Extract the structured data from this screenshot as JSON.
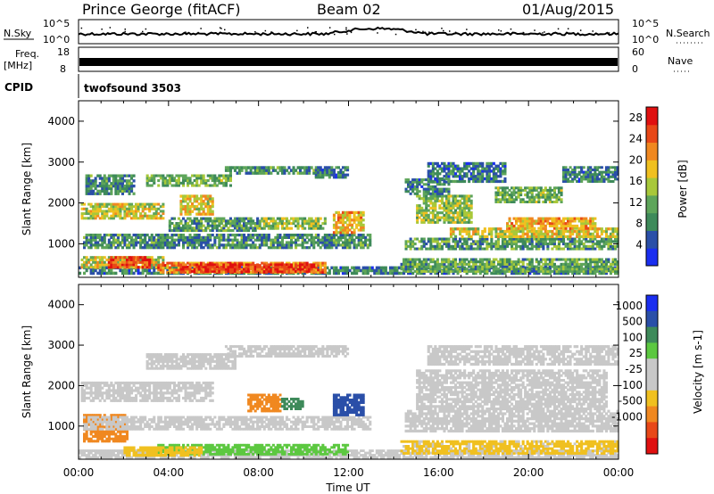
{
  "header": {
    "station": "Prince George (fitACF)",
    "beam": "Beam 02",
    "date": "01/Aug/2015"
  },
  "top_panels": {
    "nsky_label": "N.Sky",
    "nsky_ticks": [
      "10^5",
      "10^0"
    ],
    "nsearch_label": "N.Search",
    "nsearch_ticks": [
      "10^5",
      "10^0"
    ],
    "freq_label": "Freq.",
    "freq_unit": "[MHz]",
    "freq_ticks": [
      "18",
      "8"
    ],
    "nave_label": "Nave",
    "nave_ticks": [
      "60",
      "0"
    ],
    "cpid_label": "CPID",
    "cpid_value": "twofsound 3503"
  },
  "colors": {
    "power_scale": [
      "#1a2ef0",
      "#2a4fa8",
      "#3e8a5a",
      "#5ea55a",
      "#a8c83a",
      "#f0c020",
      "#f08820",
      "#e84818",
      "#e01010"
    ],
    "velocity_scale": [
      "#e01010",
      "#e84818",
      "#f08820",
      "#f0c020",
      "#c8c8c8",
      "#c8c8c8",
      "#5cc840",
      "#3e8a5a",
      "#2a4fa8",
      "#1a2ef0"
    ],
    "ground_scatter": "#c0c0c0"
  },
  "chart_data": [
    {
      "type": "heatmap",
      "name": "power-panel",
      "ylabel": "Slant Range [km]",
      "xlabel": "Time UT",
      "ylim": [
        180,
        4500
      ],
      "yticks": [
        "4000",
        "3000",
        "2000",
        "1000"
      ],
      "xticks": [
        "00:00",
        "04:00",
        "08:00",
        "12:00",
        "16:00",
        "20:00",
        "00:00"
      ],
      "colorbar_label": "Power [dB]",
      "colorbar_ticks": [
        "28",
        "24",
        "20",
        "16",
        "12",
        "8",
        "4"
      ],
      "colorbar_range": [
        0,
        30
      ],
      "x_units": "hours UT",
      "blobs": [
        {
          "t0": 0.0,
          "t1": 24.0,
          "r0": 250,
          "r1": 450,
          "v": 8
        },
        {
          "t0": 0.1,
          "t1": 3.8,
          "r0": 400,
          "r1": 700,
          "v": 16
        },
        {
          "t0": 1.3,
          "t1": 3.2,
          "r0": 400,
          "r1": 700,
          "v": 25
        },
        {
          "t0": 3.5,
          "t1": 11.0,
          "r0": 280,
          "r1": 560,
          "v": 22
        },
        {
          "t0": 4.5,
          "t1": 10.5,
          "r0": 300,
          "r1": 520,
          "v": 27
        },
        {
          "t0": 0.2,
          "t1": 13.0,
          "r0": 880,
          "r1": 1250,
          "v": 9
        },
        {
          "t0": 4.0,
          "t1": 8.0,
          "r0": 1300,
          "r1": 1650,
          "v": 10
        },
        {
          "t0": 8.0,
          "t1": 11.0,
          "r0": 1350,
          "r1": 1650,
          "v": 14
        },
        {
          "t0": 11.3,
          "t1": 12.7,
          "r0": 1250,
          "r1": 1800,
          "v": 19
        },
        {
          "t0": 0.1,
          "t1": 3.8,
          "r0": 1600,
          "r1": 2000,
          "v": 16
        },
        {
          "t0": 4.5,
          "t1": 6.0,
          "r0": 1700,
          "r1": 2200,
          "v": 18
        },
        {
          "t0": 0.3,
          "t1": 2.5,
          "r0": 2200,
          "r1": 2700,
          "v": 9
        },
        {
          "t0": 3.0,
          "t1": 6.8,
          "r0": 2400,
          "r1": 2700,
          "v": 12
        },
        {
          "t0": 6.5,
          "t1": 10.5,
          "r0": 2700,
          "r1": 2900,
          "v": 9
        },
        {
          "t0": 10.5,
          "t1": 12.0,
          "r0": 2600,
          "r1": 2900,
          "v": 8
        },
        {
          "t0": 14.3,
          "t1": 24.0,
          "r0": 300,
          "r1": 650,
          "v": 11
        },
        {
          "t0": 14.5,
          "t1": 24.0,
          "r0": 850,
          "r1": 1150,
          "v": 10
        },
        {
          "t0": 16.5,
          "t1": 24.0,
          "r0": 1150,
          "r1": 1400,
          "v": 17
        },
        {
          "t0": 19.0,
          "t1": 23.0,
          "r0": 1350,
          "r1": 1650,
          "v": 20
        },
        {
          "t0": 15.0,
          "t1": 17.5,
          "r0": 1500,
          "r1": 2200,
          "v": 14
        },
        {
          "t0": 18.5,
          "t1": 21.5,
          "r0": 2000,
          "r1": 2400,
          "v": 12
        },
        {
          "t0": 21.5,
          "t1": 24.0,
          "r0": 2500,
          "r1": 2900,
          "v": 8
        },
        {
          "t0": 14.5,
          "t1": 16.5,
          "r0": 2200,
          "r1": 2600,
          "v": 8
        },
        {
          "t0": 15.5,
          "t1": 19.0,
          "r0": 2500,
          "r1": 3000,
          "v": 7
        }
      ]
    },
    {
      "type": "heatmap",
      "name": "velocity-panel",
      "ylabel": "Slant Range [km]",
      "xlabel": "Time UT",
      "ylim": [
        180,
        4500
      ],
      "yticks": [
        "4000",
        "3000",
        "2000",
        "1000"
      ],
      "xticks": [
        "00:00",
        "04:00",
        "08:00",
        "12:00",
        "16:00",
        "20:00",
        "00:00"
      ],
      "colorbar_label": "Velocity [m s-1]",
      "colorbar_ticks": [
        "1000",
        "500",
        "100",
        "25",
        "-25",
        "-100",
        "-500",
        "-1000"
      ],
      "x_units": "hours UT",
      "blobs": [
        {
          "t0": 0.0,
          "t1": 24.0,
          "r0": 200,
          "r1": 420,
          "v": 0
        },
        {
          "t0": 3.5,
          "t1": 12.0,
          "r0": 280,
          "r1": 560,
          "v": 60
        },
        {
          "t0": 2.0,
          "t1": 5.5,
          "r0": 250,
          "r1": 500,
          "v": -80
        },
        {
          "t0": 0.2,
          "t1": 2.2,
          "r0": 600,
          "r1": 1300,
          "v": -300
        },
        {
          "t0": 0.2,
          "t1": 13.0,
          "r0": 900,
          "r1": 1250,
          "v": 0
        },
        {
          "t0": 0.1,
          "t1": 6.0,
          "r0": 1600,
          "r1": 2100,
          "v": 0
        },
        {
          "t0": 7.5,
          "t1": 9.0,
          "r0": 1350,
          "r1": 1800,
          "v": -120
        },
        {
          "t0": 9.0,
          "t1": 10.0,
          "r0": 1400,
          "r1": 1700,
          "v": 400
        },
        {
          "t0": 11.3,
          "t1": 12.7,
          "r0": 1250,
          "r1": 1800,
          "v": 600
        },
        {
          "t0": 3.0,
          "t1": 7.0,
          "r0": 2400,
          "r1": 2800,
          "v": 0
        },
        {
          "t0": 6.5,
          "t1": 12.0,
          "r0": 2700,
          "r1": 3000,
          "v": 0
        },
        {
          "t0": 14.3,
          "t1": 24.0,
          "r0": 300,
          "r1": 650,
          "v": -40
        },
        {
          "t0": 14.5,
          "t1": 24.0,
          "r0": 850,
          "r1": 1400,
          "v": 0
        },
        {
          "t0": 15.0,
          "t1": 23.5,
          "r0": 1400,
          "r1": 2400,
          "v": 0
        },
        {
          "t0": 15.5,
          "t1": 24.0,
          "r0": 2500,
          "r1": 3000,
          "v": 0
        }
      ]
    }
  ]
}
